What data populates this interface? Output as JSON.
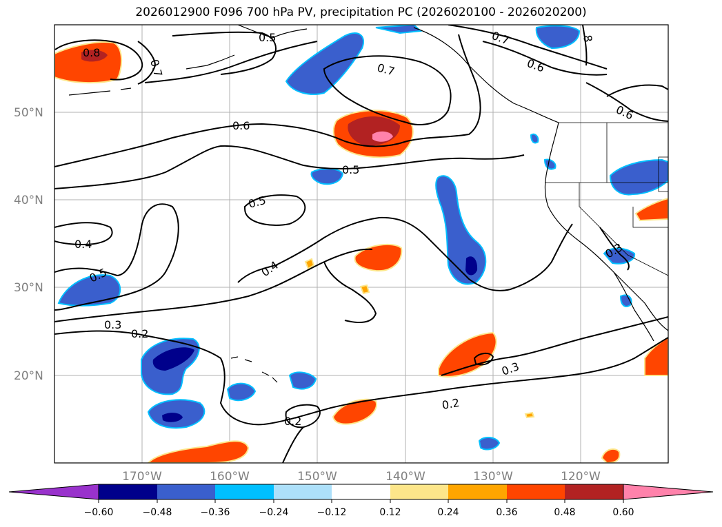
{
  "title": "2026012900 F096 700 hPa PV, precipitation PC (2026020100 - 2026020200)",
  "map": {
    "lat_labels": [
      "20°N",
      "30°N",
      "40°N",
      "50°N"
    ],
    "lon_labels": [
      "170°W",
      "160°W",
      "150°W",
      "140°W",
      "130°W",
      "120°W"
    ],
    "contour_labels": [
      {
        "id": "c-08-w",
        "text": "0.8"
      },
      {
        "id": "c-07-w",
        "text": "0.7"
      },
      {
        "id": "c-05-n",
        "text": "0.5"
      },
      {
        "id": "c-07-mid",
        "text": "0.7"
      },
      {
        "id": "c-07-ne",
        "text": "0.7"
      },
      {
        "id": "c-06-ne",
        "text": "0.6"
      },
      {
        "id": "c-08-ne",
        "text": "8"
      },
      {
        "id": "c-06-e",
        "text": "0.6"
      },
      {
        "id": "c-06-mid",
        "text": "0.6"
      },
      {
        "id": "c-05-mid",
        "text": "0.5"
      },
      {
        "id": "c-05-c",
        "text": "0.5"
      },
      {
        "id": "c-04-w",
        "text": "0.4"
      },
      {
        "id": "c-05-sw",
        "text": "0.5"
      },
      {
        "id": "c-04-c",
        "text": "0.4"
      },
      {
        "id": "c-03-w",
        "text": "0.3"
      },
      {
        "id": "c-02-w",
        "text": "0.2"
      },
      {
        "id": "c-03-e",
        "text": "0.3"
      },
      {
        "id": "c-02-se",
        "text": "0.2"
      },
      {
        "id": "c-02-s",
        "text": "0.2"
      },
      {
        "id": "c-03-coast",
        "text": "0.3"
      }
    ]
  },
  "colorbar": {
    "ticks": [
      "−0.60",
      "−0.48",
      "−0.36",
      "−0.24",
      "−0.12",
      "0.12",
      "0.24",
      "0.36",
      "0.48",
      "0.60"
    ],
    "colors": [
      "#9932CC",
      "#00008B",
      "#3A5FCD",
      "#00BFFF",
      "#ADE0FA",
      "#FFFFFF",
      "#FDE68A",
      "#FFA500",
      "#FF4500",
      "#B22222",
      "#FF82AB"
    ]
  }
}
